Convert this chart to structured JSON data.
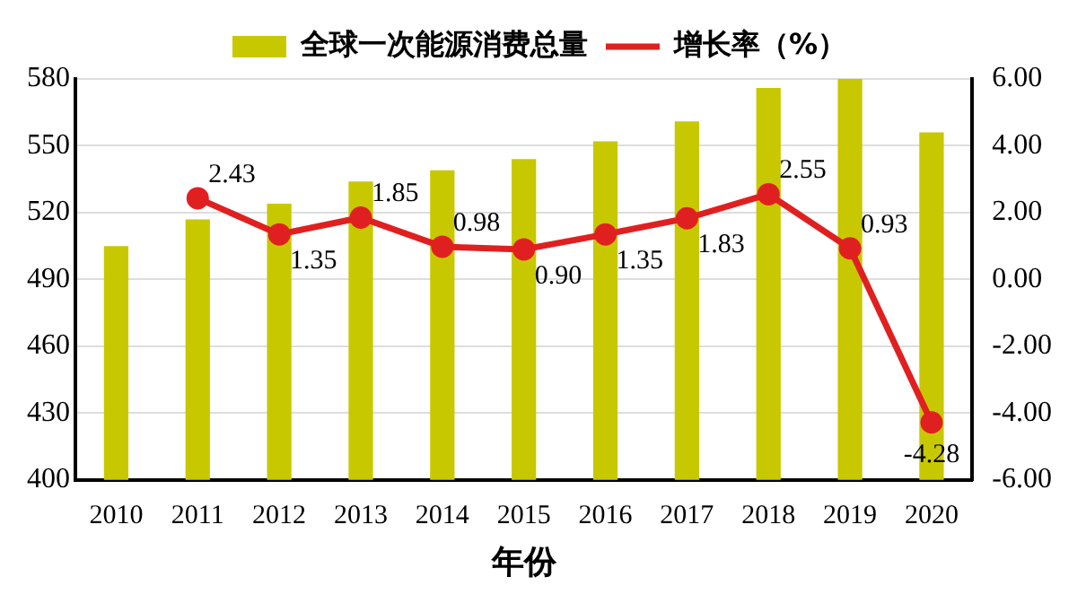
{
  "chart_data": {
    "type": "bar",
    "xlabel": "年份",
    "categories": [
      "2010",
      "2011",
      "2012",
      "2013",
      "2014",
      "2015",
      "2016",
      "2017",
      "2018",
      "2019",
      "2020"
    ],
    "series": [
      {
        "name": "全球一次能源消费总量",
        "color": "#c8c800",
        "values": [
          505,
          517,
          524,
          534,
          539,
          544,
          552,
          561,
          576,
          580,
          556
        ]
      },
      {
        "name": "增长率（%）",
        "type": "line",
        "axis": "y2",
        "color": "#e02020",
        "values": [
          null,
          2.43,
          1.35,
          1.85,
          0.98,
          0.9,
          1.35,
          1.83,
          2.55,
          0.93,
          -4.28
        ],
        "value_labels": [
          null,
          "2.43",
          "1.35",
          "1.85",
          "0.98",
          "0.90",
          "1.35",
          "1.83",
          "2.55",
          "0.93",
          "-4.28"
        ]
      }
    ],
    "ylim": [
      400,
      580
    ],
    "yticks": [
      400,
      430,
      460,
      490,
      520,
      550,
      580
    ],
    "y2lim": [
      -6,
      6
    ],
    "y2ticks": [
      {
        "value": -6,
        "label": "-6.00"
      },
      {
        "value": -4,
        "label": "-4.00"
      },
      {
        "value": -2,
        "label": "-2.00"
      },
      {
        "value": 0,
        "label": "0.00"
      },
      {
        "value": 2,
        "label": "2.00"
      },
      {
        "value": 4,
        "label": "4.00"
      },
      {
        "value": 6,
        "label": "6.00"
      }
    ],
    "grid": "y",
    "legend": "top",
    "marker": "circle",
    "line_style": "solid"
  }
}
